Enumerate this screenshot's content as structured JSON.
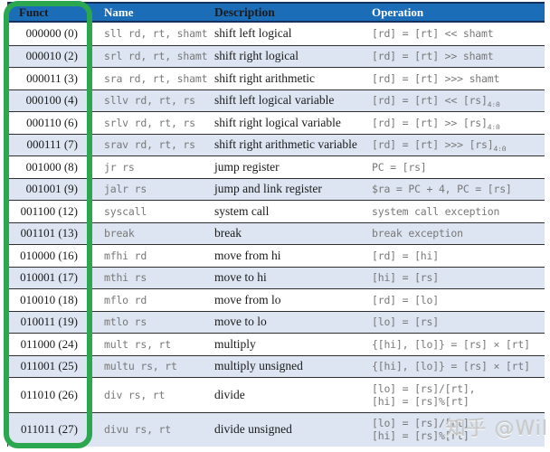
{
  "watermark": {
    "text": "知乎 @Wil"
  },
  "colors": {
    "header_bg": "#1b6db8",
    "header_border": "#14315c",
    "row_alt": "#dce5f1",
    "row_line": "#2e2e2e",
    "green": "#2aa74f",
    "mono_color": "#787878",
    "text_color": "#1a1a1a",
    "watermark_color": "#c9c9c9"
  },
  "chart_data": {
    "type": "table",
    "columns": [
      "Funct",
      "Name",
      "Description",
      "Operation"
    ],
    "highlighted_column": "Funct",
    "rows": [
      {
        "funct": "000000 (0)",
        "name": "sll rd, rt, shamt",
        "desc": "shift left logical",
        "op": "[rd] = [rt] << shamt"
      },
      {
        "funct": "000010 (2)",
        "name": "srl rd, rt, shamt",
        "desc": "shift right logical",
        "op": "[rd] = [rt] >> shamt"
      },
      {
        "funct": "000011 (3)",
        "name": "sra rd, rt, shamt",
        "desc": "shift right arithmetic",
        "op": "[rd] = [rt] >>> shamt"
      },
      {
        "funct": "000100 (4)",
        "name": "sllv rd, rt, rs",
        "desc": "shift left logical variable",
        "op": "[rd] = [rt] << [rs]",
        "sub": "4:0"
      },
      {
        "funct": "000110 (6)",
        "name": "srlv rd, rt, rs",
        "desc": "shift right logical variable",
        "op": "[rd] = [rt] >> [rs]",
        "sub": "4:0"
      },
      {
        "funct": "000111 (7)",
        "name": "srav rd, rt, rs",
        "desc": "shift right arithmetic variable",
        "op": "[rd] = [rt] >>> [rs]",
        "sub": "4:0"
      },
      {
        "funct": "001000 (8)",
        "name": "jr rs",
        "desc": "jump register",
        "op": "PC = [rs]"
      },
      {
        "funct": "001001 (9)",
        "name": "jalr rs",
        "desc": "jump and link register",
        "op": "$ra = PC + 4, PC = [rs]"
      },
      {
        "funct": "001100 (12)",
        "name": "syscall",
        "desc": "system call",
        "op": "system call exception"
      },
      {
        "funct": "001101 (13)",
        "name": "break",
        "desc": "break",
        "op": "break exception"
      },
      {
        "funct": "010000 (16)",
        "name": "mfhi rd",
        "desc": "move from hi",
        "op": "[rd] = [hi]"
      },
      {
        "funct": "010001 (17)",
        "name": "mthi rs",
        "desc": "move to hi",
        "op": "[hi] = [rs]"
      },
      {
        "funct": "010010 (18)",
        "name": "mflo rd",
        "desc": "move from lo",
        "op": "[rd] = [lo]"
      },
      {
        "funct": "010011 (19)",
        "name": "mtlo rs",
        "desc": "move to lo",
        "op": "[lo] = [rs]"
      },
      {
        "funct": "011000 (24)",
        "name": "mult rs, rt",
        "desc": "multiply",
        "op": "{[hi], [lo]} = [rs] × [rt]"
      },
      {
        "funct": "011001 (25)",
        "name": "multu rs, rt",
        "desc": "multiply unsigned",
        "op": "{[hi], [lo]} = [rs] × [rt]"
      },
      {
        "funct": "011010 (26)",
        "name": "div rs, rt",
        "desc": "divide",
        "op": "[lo] = [rs]/[rt],",
        "op2": "[hi] = [rs]%[rt]"
      },
      {
        "funct": "011011 (27)",
        "name": "divu rs, rt",
        "desc": "divide unsigned",
        "op": "[lo] = [rs]/[rt],",
        "op2": "[hi] = [rs]%[rt]"
      }
    ]
  }
}
